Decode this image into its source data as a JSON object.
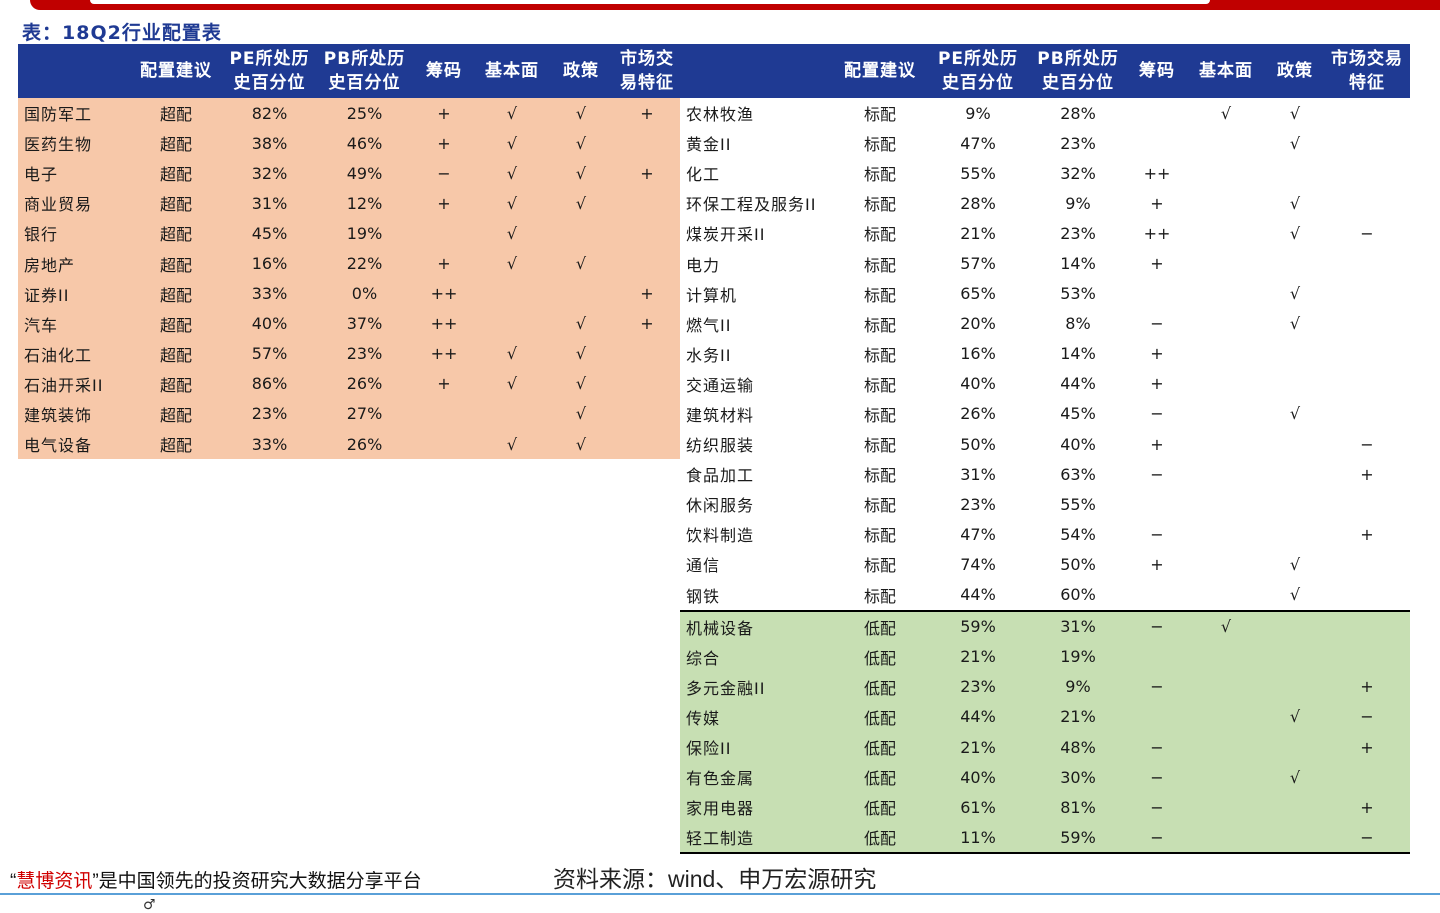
{
  "caption": "表：18Q2行业配置表",
  "headers": [
    "",
    "配置建议",
    "PE所处历史百分位",
    "PB所处历史百分位",
    "筹码",
    "基本面",
    "政策",
    "市场交易特征"
  ],
  "left_rows": [
    [
      "国防军工",
      "超配",
      "82%",
      "25%",
      "+",
      "√",
      "√",
      "+"
    ],
    [
      "医药生物",
      "超配",
      "38%",
      "46%",
      "+",
      "√",
      "√",
      ""
    ],
    [
      "电子",
      "超配",
      "32%",
      "49%",
      "−",
      "√",
      "√",
      "+"
    ],
    [
      "商业贸易",
      "超配",
      "31%",
      "12%",
      "+",
      "√",
      "√",
      ""
    ],
    [
      "银行",
      "超配",
      "45%",
      "19%",
      "",
      "√",
      "",
      ""
    ],
    [
      "房地产",
      "超配",
      "16%",
      "22%",
      "+",
      "√",
      "√",
      ""
    ],
    [
      "证券II",
      "超配",
      "33%",
      "0%",
      "++",
      "",
      "",
      "+"
    ],
    [
      "汽车",
      "超配",
      "40%",
      "37%",
      "++",
      "",
      "√",
      "+"
    ],
    [
      "石油化工",
      "超配",
      "57%",
      "23%",
      "++",
      "√",
      "√",
      ""
    ],
    [
      "石油开采II",
      "超配",
      "86%",
      "26%",
      "+",
      "√",
      "√",
      ""
    ],
    [
      "建筑装饰",
      "超配",
      "23%",
      "27%",
      "",
      "",
      "√",
      ""
    ],
    [
      "电气设备",
      "超配",
      "33%",
      "26%",
      "",
      "√",
      "√",
      ""
    ]
  ],
  "right_rows": [
    [
      "农林牧渔",
      "标配",
      "9%",
      "28%",
      "",
      "√",
      "√",
      ""
    ],
    [
      "黄金II",
      "标配",
      "47%",
      "23%",
      "",
      "",
      "√",
      ""
    ],
    [
      "化工",
      "标配",
      "55%",
      "32%",
      "++",
      "",
      "",
      ""
    ],
    [
      "环保工程及服务II",
      "标配",
      "28%",
      "9%",
      "+",
      "",
      "√",
      ""
    ],
    [
      "煤炭开采II",
      "标配",
      "21%",
      "23%",
      "++",
      "",
      "√",
      "−"
    ],
    [
      "电力",
      "标配",
      "57%",
      "14%",
      "+",
      "",
      "",
      ""
    ],
    [
      "计算机",
      "标配",
      "65%",
      "53%",
      "",
      "",
      "√",
      ""
    ],
    [
      "燃气II",
      "标配",
      "20%",
      "8%",
      "−",
      "",
      "√",
      ""
    ],
    [
      "水务II",
      "标配",
      "16%",
      "14%",
      "+",
      "",
      "",
      ""
    ],
    [
      "交通运输",
      "标配",
      "40%",
      "44%",
      "+",
      "",
      "",
      ""
    ],
    [
      "建筑材料",
      "标配",
      "26%",
      "45%",
      "−",
      "",
      "√",
      ""
    ],
    [
      "纺织服装",
      "标配",
      "50%",
      "40%",
      "+",
      "",
      "",
      "−"
    ],
    [
      "食品加工",
      "标配",
      "31%",
      "63%",
      "−",
      "",
      "",
      "+"
    ],
    [
      "休闲服务",
      "标配",
      "23%",
      "55%",
      "",
      "",
      "",
      ""
    ],
    [
      "饮料制造",
      "标配",
      "47%",
      "54%",
      "−",
      "",
      "",
      "+"
    ],
    [
      "通信",
      "标配",
      "74%",
      "50%",
      "+",
      "",
      "√",
      ""
    ],
    [
      "钢铁",
      "标配",
      "44%",
      "60%",
      "",
      "",
      "√",
      ""
    ],
    [
      "机械设备",
      "低配",
      "59%",
      "31%",
      "−",
      "√",
      "",
      ""
    ],
    [
      "综合",
      "低配",
      "21%",
      "19%",
      "",
      "",
      "",
      ""
    ],
    [
      "多元金融II",
      "低配",
      "23%",
      "9%",
      "−",
      "",
      "",
      "+"
    ],
    [
      "传媒",
      "低配",
      "44%",
      "21%",
      "",
      "",
      "√",
      "−"
    ],
    [
      "保险II",
      "低配",
      "21%",
      "48%",
      "−",
      "",
      "",
      "+"
    ],
    [
      "有色金属",
      "低配",
      "40%",
      "30%",
      "−",
      "",
      "√",
      ""
    ],
    [
      "家用电器",
      "低配",
      "61%",
      "81%",
      "−",
      "",
      "",
      "+"
    ],
    [
      "轻工制造",
      "低配",
      "11%",
      "59%",
      "−",
      "",
      "",
      "−"
    ]
  ],
  "colors": {
    "header_bg": "#1f3a93",
    "overweight_bg": "#f7c8a9",
    "underweight_bg": "#c7dfb3",
    "caption": "#1f3a93",
    "brand_red": "#d00000"
  },
  "footer": {
    "quote_open": "“",
    "brand": "慧博资讯",
    "quote_close": "”",
    "slogan": "是中国领先的投资研究大数据分享平台",
    "source": "资料来源：wind、申万宏源研究",
    "bottom_mark": "♂"
  }
}
